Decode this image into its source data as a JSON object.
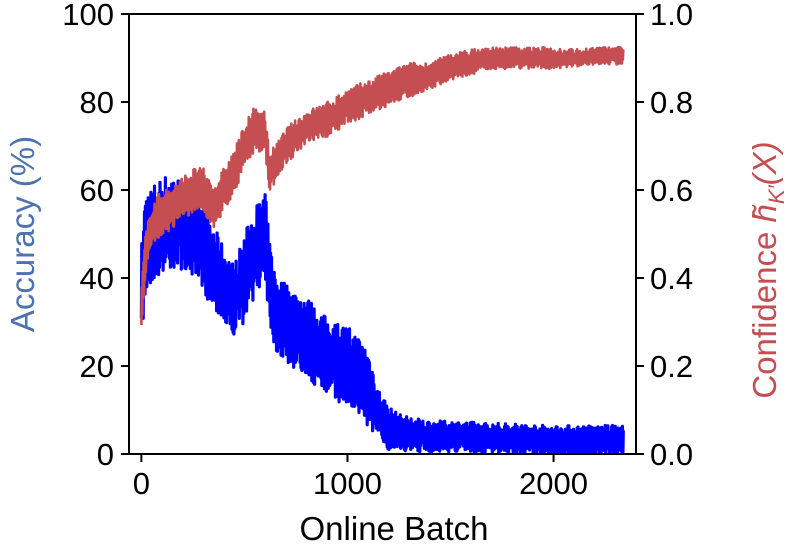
{
  "chart_data": {
    "type": "line",
    "xlabel": "Online Batch",
    "ylabel_left": "Accuracy (%)",
    "ylabel_right": {
      "prefix": "Confidence ",
      "symbol": "h̃",
      "subscript": "K′",
      "suffix": "(X)"
    },
    "xlim": [
      -60,
      2400
    ],
    "ylim_left": [
      0,
      100
    ],
    "ylim_right": [
      0.0,
      1.0
    ],
    "x_ticks": [
      0,
      1000,
      2000
    ],
    "x_tick_labels": [
      "0",
      "1000",
      "2000"
    ],
    "y_left_ticks": [
      0,
      20,
      40,
      60,
      80,
      100
    ],
    "y_left_tick_labels": [
      "0",
      "20",
      "40",
      "60",
      "80",
      "100"
    ],
    "y_right_ticks": [
      0.0,
      0.2,
      0.4,
      0.6,
      0.8,
      1.0
    ],
    "y_right_tick_labels": [
      "0.0",
      "0.2",
      "0.4",
      "0.6",
      "0.8",
      "1.0"
    ],
    "grid": false,
    "colors": {
      "accuracy": "#0000ff",
      "confidence": "#c44e52",
      "left_label": "#4c72b0",
      "right_label": "#c44e52"
    },
    "series": [
      {
        "axis": "left",
        "color": "#0000ff",
        "x": [
          0,
          20,
          50,
          100,
          150,
          200,
          250,
          300,
          350,
          400,
          450,
          500,
          550,
          600,
          620,
          650,
          700,
          750,
          800,
          850,
          900,
          950,
          1000,
          1050,
          1100,
          1150,
          1200,
          1250,
          1300,
          1400,
          1500,
          1600,
          1700,
          1800,
          1900,
          2000,
          2100,
          2200,
          2300,
          2340
        ],
        "center": [
          35,
          48,
          50,
          52,
          53,
          52,
          50,
          46,
          43,
          38,
          35,
          40,
          46,
          50,
          40,
          32,
          30,
          28,
          27,
          24,
          22,
          21,
          20,
          18,
          15,
          9,
          6,
          5,
          4.5,
          4,
          4,
          3.8,
          3.5,
          3.5,
          3.2,
          3,
          3,
          3,
          3,
          3
        ],
        "spread": [
          12,
          12,
          11,
          11,
          11,
          10,
          10,
          10,
          9,
          9,
          8,
          10,
          10,
          10,
          9,
          9,
          9,
          9,
          9,
          9,
          9,
          9,
          9,
          9,
          9,
          6,
          5,
          4,
          4,
          3.5,
          3.5,
          3.5,
          3.5,
          3.5,
          3.5,
          3.5,
          3.5,
          3.5,
          3.5,
          3.5
        ]
      },
      {
        "axis": "right",
        "color": "#c44e52",
        "x": [
          0,
          20,
          50,
          100,
          150,
          200,
          250,
          300,
          350,
          400,
          450,
          500,
          550,
          600,
          620,
          650,
          700,
          800,
          900,
          1000,
          1100,
          1200,
          1300,
          1400,
          1500,
          1600,
          1700,
          1800,
          1900,
          2000,
          2100,
          2200,
          2300,
          2340
        ],
        "center": [
          0.33,
          0.45,
          0.52,
          0.55,
          0.56,
          0.58,
          0.6,
          0.6,
          0.56,
          0.6,
          0.64,
          0.7,
          0.74,
          0.73,
          0.64,
          0.66,
          0.7,
          0.74,
          0.76,
          0.79,
          0.81,
          0.83,
          0.85,
          0.86,
          0.88,
          0.89,
          0.9,
          0.9,
          0.9,
          0.9,
          0.9,
          0.905,
          0.905,
          0.905
        ],
        "spread": [
          0.05,
          0.05,
          0.05,
          0.05,
          0.05,
          0.05,
          0.05,
          0.05,
          0.05,
          0.05,
          0.05,
          0.05,
          0.05,
          0.05,
          0.05,
          0.04,
          0.04,
          0.04,
          0.04,
          0.04,
          0.04,
          0.04,
          0.04,
          0.03,
          0.03,
          0.03,
          0.025,
          0.025,
          0.025,
          0.025,
          0.02,
          0.02,
          0.02,
          0.02
        ]
      }
    ]
  }
}
